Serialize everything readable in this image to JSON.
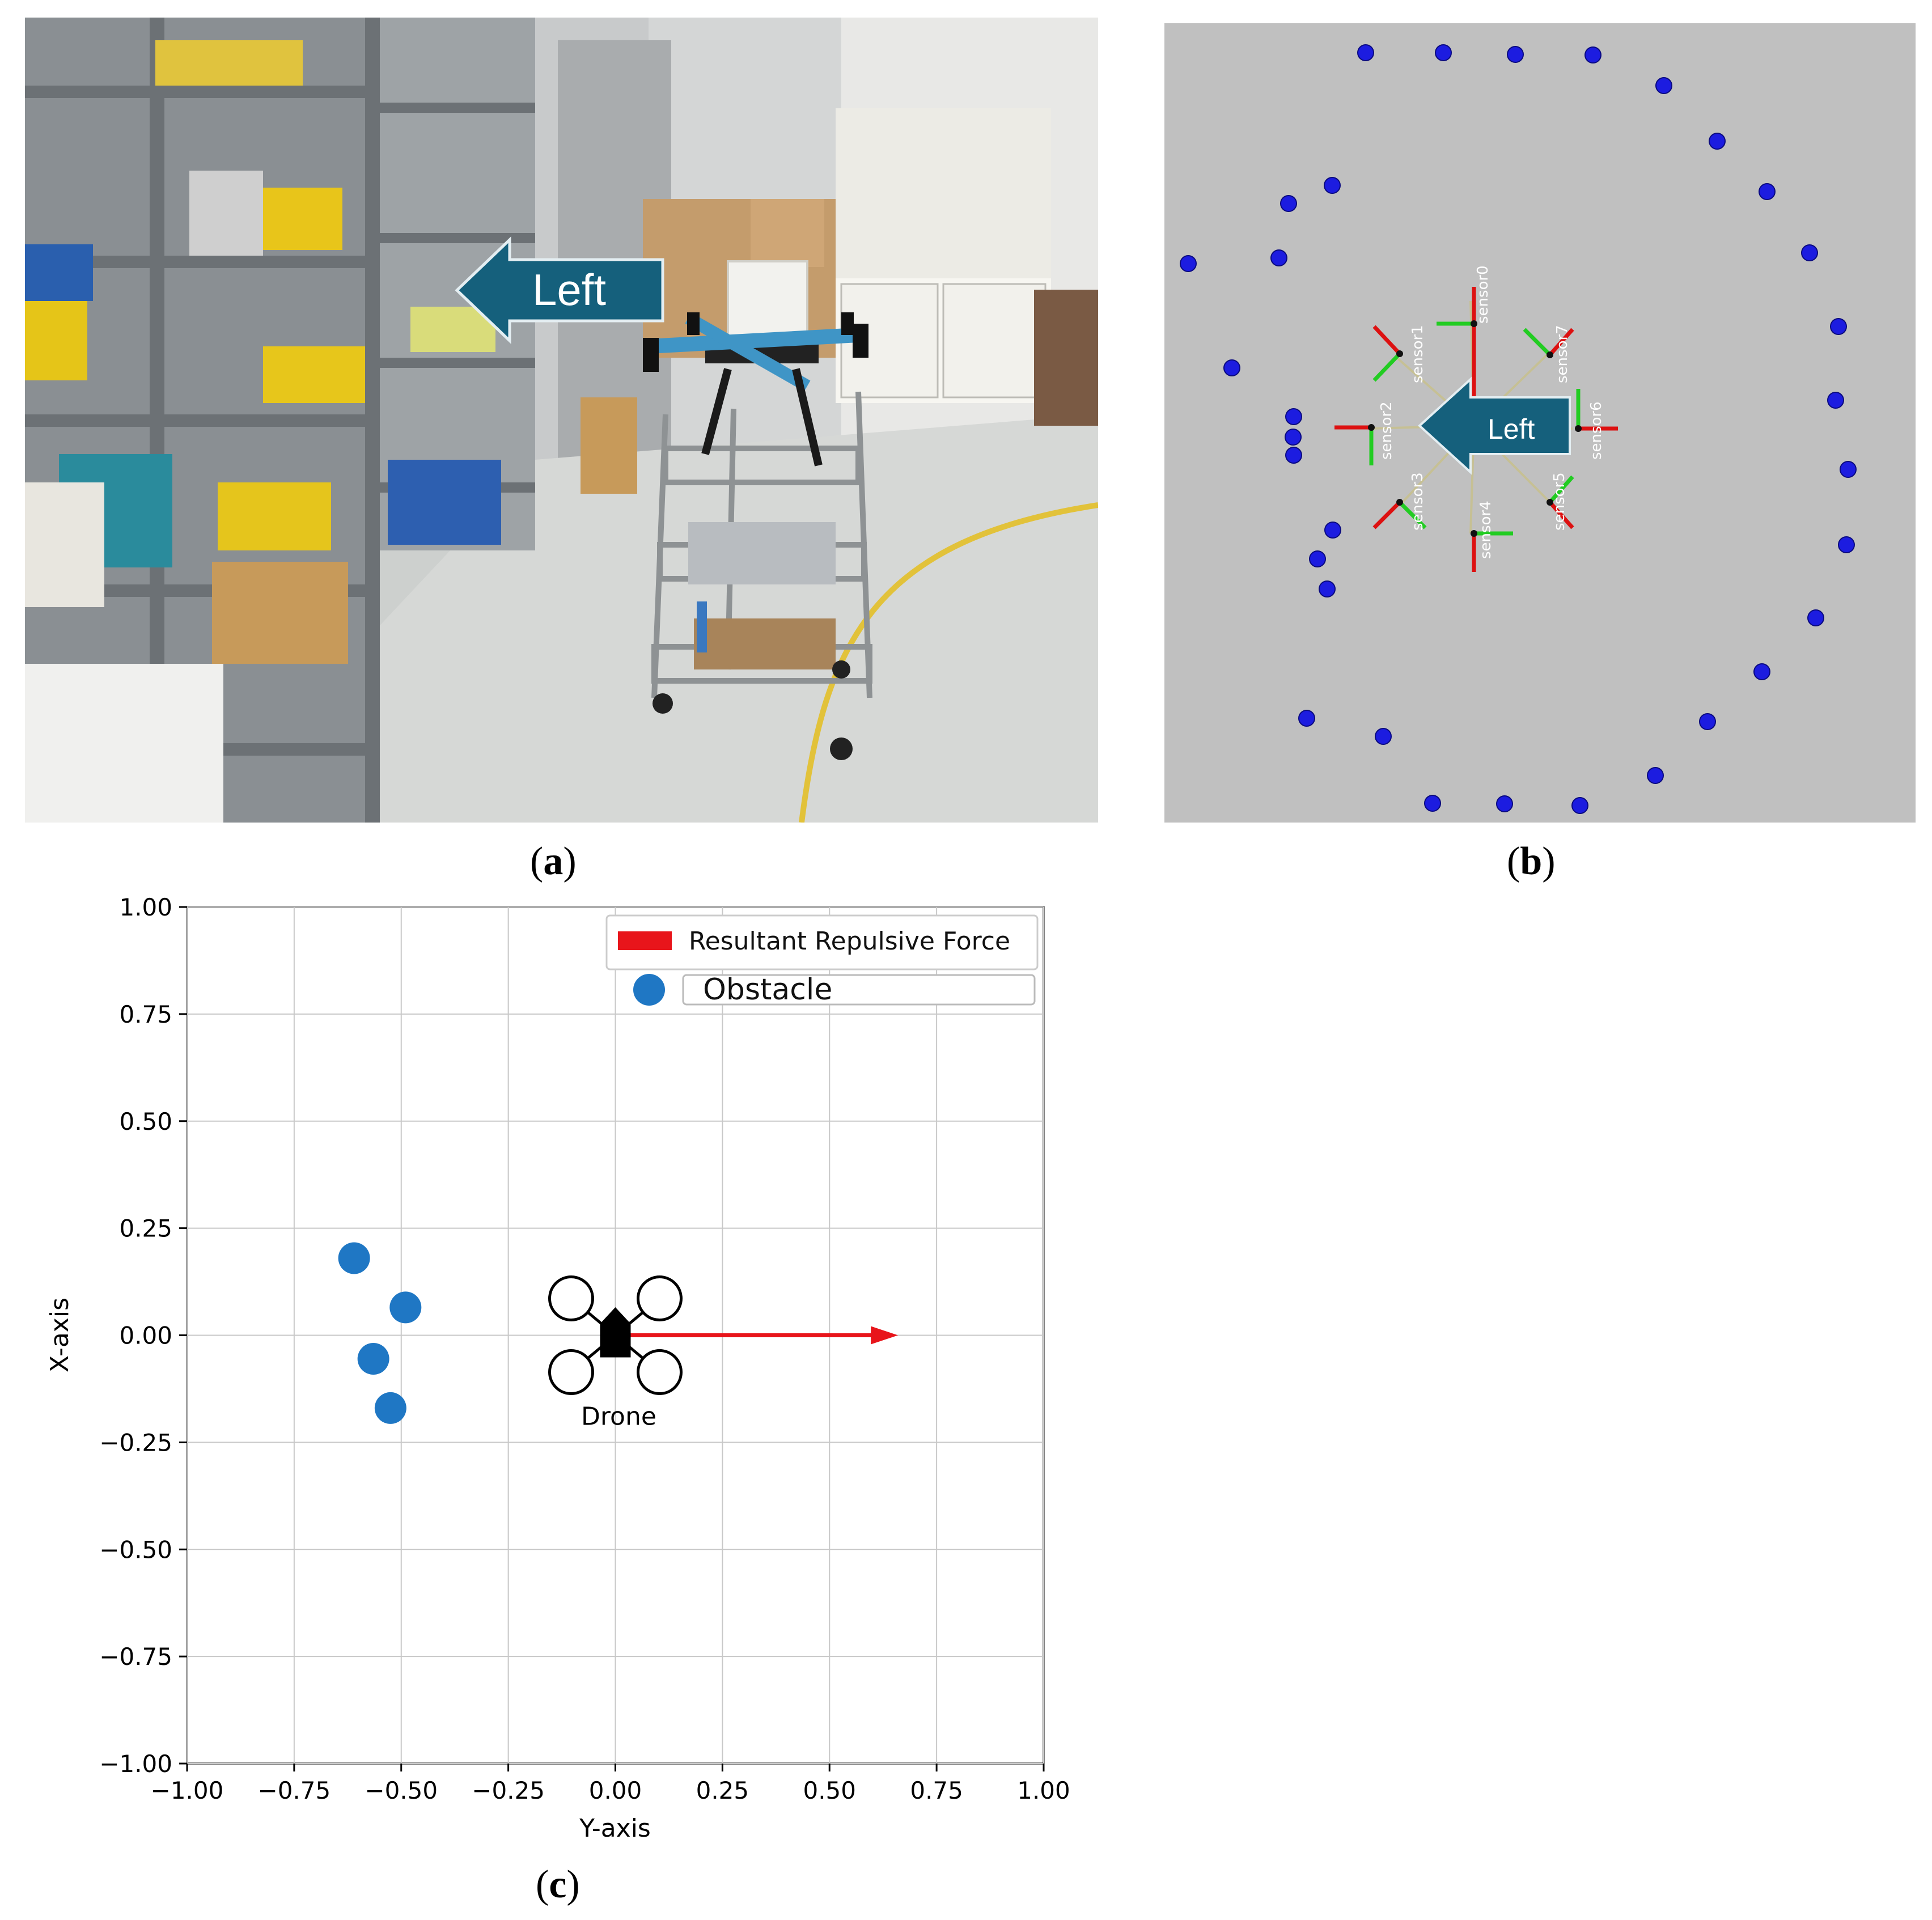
{
  "panel_a": {
    "arrow_label": "Left",
    "caption": "a"
  },
  "panel_b": {
    "arrow_label": "Left",
    "caption": "b",
    "sensors": [
      "sensor0",
      "sensor1",
      "sensor2",
      "sensor3",
      "sensor4",
      "sensor5",
      "sensor6",
      "sensor7"
    ],
    "colors": {
      "background": "#c0c0c0",
      "points": "#1c1ce0",
      "x_axis": "#dd1111",
      "y_axis": "#22cc22"
    }
  },
  "panel_c": {
    "caption": "c",
    "drone_label": "Drone",
    "legend": {
      "force": "Resultant Repulsive Force",
      "obstacle": "Obstacle"
    },
    "colors": {
      "obstacle": "#1f77c4",
      "force": "#e8151b"
    }
  },
  "chart_data": {
    "type": "scatter",
    "xlabel": "Y-axis",
    "ylabel": "X-axis",
    "xlim": [
      -1.0,
      1.0
    ],
    "ylim": [
      -1.0,
      1.0
    ],
    "grid": true,
    "legend_placement": "top-right",
    "x_ticks": [
      "−1.00",
      "−0.75",
      "−0.50",
      "−0.25",
      "0.00",
      "0.25",
      "0.50",
      "0.75",
      "1.00"
    ],
    "y_ticks": [
      "1.00",
      "0.75",
      "0.50",
      "0.25",
      "0.00",
      "−0.25",
      "−0.50",
      "−0.75",
      "−1.00"
    ],
    "series": [
      {
        "name": "Obstacle",
        "points": [
          [
            -0.61,
            0.18
          ],
          [
            -0.49,
            0.065
          ],
          [
            -0.565,
            -0.055
          ],
          [
            -0.525,
            -0.17
          ]
        ]
      }
    ],
    "force_vector": {
      "name": "Resultant Repulsive Force",
      "from": [
        0.0,
        0.0
      ],
      "to": [
        0.66,
        0.0
      ]
    },
    "drone": {
      "position": [
        0.0,
        0.0
      ]
    }
  }
}
